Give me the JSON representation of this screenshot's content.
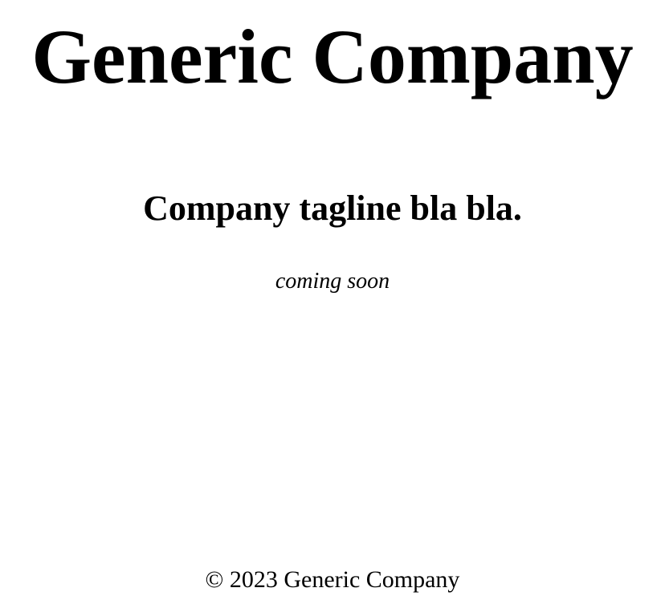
{
  "header": {
    "company_name": "Generic Company"
  },
  "main": {
    "tagline": "Company tagline bla bla.",
    "status": "coming soon"
  },
  "footer": {
    "copyright": "© 2023 Generic Company"
  }
}
